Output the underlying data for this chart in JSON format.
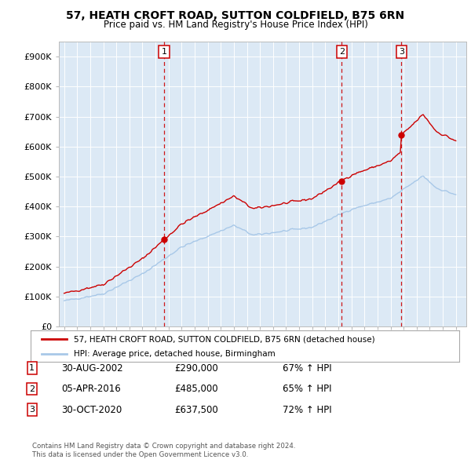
{
  "title": "57, HEATH CROFT ROAD, SUTTON COLDFIELD, B75 6RN",
  "subtitle": "Price paid vs. HM Land Registry's House Price Index (HPI)",
  "ylim": [
    0,
    950000
  ],
  "yticks": [
    0,
    100000,
    200000,
    300000,
    400000,
    500000,
    600000,
    700000,
    800000,
    900000
  ],
  "ytick_labels": [
    "£0",
    "£100K",
    "£200K",
    "£300K",
    "£400K",
    "£500K",
    "£600K",
    "£700K",
    "£800K",
    "£900K"
  ],
  "xlim_left": 1994.6,
  "xlim_right": 2025.8,
  "plot_bg_color": "#dce9f5",
  "fig_bg_color": "#ffffff",
  "red_color": "#cc0000",
  "blue_color": "#a8c8e8",
  "grid_color": "#ffffff",
  "transactions": [
    {
      "label": "1",
      "date": "30-AUG-2002",
      "price": 290000,
      "x_year": 2002.66,
      "hpi_pct": "67% ↑ HPI"
    },
    {
      "label": "2",
      "date": "05-APR-2016",
      "price": 485000,
      "x_year": 2016.26,
      "hpi_pct": "65% ↑ HPI"
    },
    {
      "label": "3",
      "date": "30-OCT-2020",
      "price": 637500,
      "x_year": 2020.83,
      "hpi_pct": "72% ↑ HPI"
    }
  ],
  "legend_label_red": "57, HEATH CROFT ROAD, SUTTON COLDFIELD, B75 6RN (detached house)",
  "legend_label_blue": "HPI: Average price, detached house, Birmingham",
  "footer1": "Contains HM Land Registry data © Crown copyright and database right 2024.",
  "footer2": "This data is licensed under the Open Government Licence v3.0."
}
